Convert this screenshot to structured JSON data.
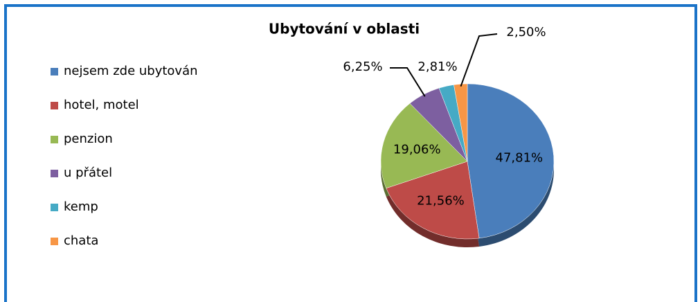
{
  "chart_data": {
    "type": "pie",
    "title": "Ubytování v oblasti",
    "categories": [
      "nejsem zde ubytován",
      "hotel, motel",
      "penzion",
      "u přátel",
      "kemp",
      "chata"
    ],
    "values": [
      47.81,
      21.56,
      19.06,
      6.25,
      2.81,
      2.5
    ],
    "value_labels": [
      "47,81%",
      "21,56%",
      "19,06%",
      "6,25%",
      "2,81%",
      "2,50%"
    ],
    "colors": [
      "#4a7ebb",
      "#be4b48",
      "#98b954",
      "#7d5fa0",
      "#46aac5",
      "#f79646"
    ],
    "legend": "left"
  }
}
